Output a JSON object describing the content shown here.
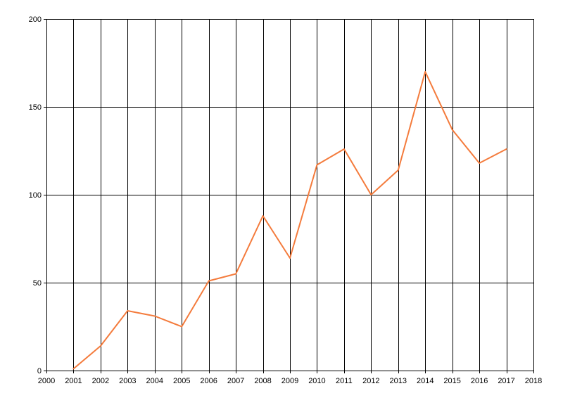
{
  "chart_data": {
    "type": "line",
    "title": "",
    "xlabel": "",
    "ylabel": "",
    "xlim": [
      2000,
      2018
    ],
    "ylim": [
      0,
      200
    ],
    "x_ticks": [
      2000,
      2001,
      2002,
      2003,
      2004,
      2005,
      2006,
      2007,
      2008,
      2009,
      2010,
      2011,
      2012,
      2013,
      2014,
      2015,
      2016,
      2017,
      2018
    ],
    "x_tick_labels": [
      "2000",
      "2001",
      "2002",
      "2003",
      "2004",
      "2005",
      "2006",
      "2007",
      "2008",
      "2009",
      "2010",
      "2011",
      "2012",
      "2013",
      "2014",
      "2015",
      "2016",
      "2017",
      "2018"
    ],
    "y_ticks": [
      0,
      50,
      100,
      150,
      200
    ],
    "y_tick_labels": [
      "0",
      "50",
      "100",
      "150",
      "200"
    ],
    "grid": true,
    "legend": "none",
    "series": [
      {
        "color": "#F47B3C",
        "x": [
          2001,
          2002,
          2003,
          2004,
          2005,
          2006,
          2007,
          2008,
          2009,
          2010,
          2011,
          2012,
          2013,
          2014,
          2015,
          2016,
          2017
        ],
        "y": [
          1,
          14,
          34,
          31,
          25,
          51,
          55,
          88,
          64,
          117,
          126,
          100,
          114,
          170,
          137,
          118,
          126
        ]
      }
    ]
  }
}
